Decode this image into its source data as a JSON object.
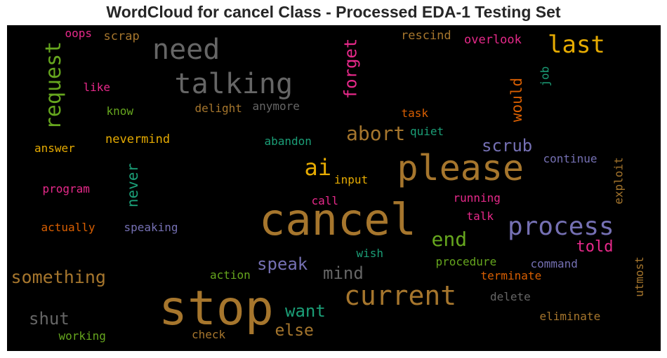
{
  "chart_data": {
    "type": "wordcloud",
    "title": "WordCloud for cancel Class - Processed EDA-1 Testing Set",
    "words": [
      {
        "text": "cancel",
        "color": "#a6762d",
        "vertical": false
      },
      {
        "text": "stop",
        "color": "#a6762d",
        "vertical": false
      },
      {
        "text": "please",
        "color": "#a6762d",
        "vertical": false
      },
      {
        "text": "need",
        "color": "#666666",
        "vertical": false
      },
      {
        "text": "talking",
        "color": "#666666",
        "vertical": false
      },
      {
        "text": "current",
        "color": "#a6762d",
        "vertical": false
      },
      {
        "text": "process",
        "color": "#7570b3",
        "vertical": false
      },
      {
        "text": "request",
        "color": "#66a61e",
        "vertical": true
      },
      {
        "text": "last",
        "color": "#e6ab02",
        "vertical": false
      },
      {
        "text": "abort",
        "color": "#a6762d",
        "vertical": false
      },
      {
        "text": "ai",
        "color": "#e6ab02",
        "vertical": false
      },
      {
        "text": "forget",
        "color": "#e7298a",
        "vertical": true
      },
      {
        "text": "end",
        "color": "#66a61e",
        "vertical": false
      },
      {
        "text": "something",
        "color": "#a6762d",
        "vertical": false
      },
      {
        "text": "speak",
        "color": "#7570b3",
        "vertical": false
      },
      {
        "text": "mind",
        "color": "#666666",
        "vertical": false
      },
      {
        "text": "want",
        "color": "#1b9e77",
        "vertical": false
      },
      {
        "text": "shut",
        "color": "#666666",
        "vertical": false
      },
      {
        "text": "else",
        "color": "#a6762d",
        "vertical": false
      },
      {
        "text": "scrub",
        "color": "#7570b3",
        "vertical": false
      },
      {
        "text": "told",
        "color": "#e7298a",
        "vertical": false
      },
      {
        "text": "would",
        "color": "#d95f02",
        "vertical": true
      },
      {
        "text": "never",
        "color": "#1b9e77",
        "vertical": true
      },
      {
        "text": "oops",
        "color": "#e7298a",
        "vertical": false
      },
      {
        "text": "scrap",
        "color": "#a6762d",
        "vertical": false
      },
      {
        "text": "rescind",
        "color": "#a6762d",
        "vertical": false
      },
      {
        "text": "overlook",
        "color": "#e7298a",
        "vertical": false
      },
      {
        "text": "job",
        "color": "#1b9e77",
        "vertical": true
      },
      {
        "text": "like",
        "color": "#e7298a",
        "vertical": false
      },
      {
        "text": "know",
        "color": "#66a61e",
        "vertical": false
      },
      {
        "text": "delight",
        "color": "#a6762d",
        "vertical": false
      },
      {
        "text": "anymore",
        "color": "#666666",
        "vertical": false
      },
      {
        "text": "task",
        "color": "#d95f02",
        "vertical": false
      },
      {
        "text": "quiet",
        "color": "#1b9e77",
        "vertical": false
      },
      {
        "text": "nevermind",
        "color": "#e6ab02",
        "vertical": false
      },
      {
        "text": "answer",
        "color": "#e6ab02",
        "vertical": false
      },
      {
        "text": "abandon",
        "color": "#1b9e77",
        "vertical": false
      },
      {
        "text": "continue",
        "color": "#7570b3",
        "vertical": false
      },
      {
        "text": "exploit",
        "color": "#a6762d",
        "vertical": true
      },
      {
        "text": "program",
        "color": "#e7298a",
        "vertical": false
      },
      {
        "text": "input",
        "color": "#e6ab02",
        "vertical": false
      },
      {
        "text": "running",
        "color": "#e7298a",
        "vertical": false
      },
      {
        "text": "call",
        "color": "#e7298a",
        "vertical": false
      },
      {
        "text": "actually",
        "color": "#d95f02",
        "vertical": false
      },
      {
        "text": "speaking",
        "color": "#7570b3",
        "vertical": false
      },
      {
        "text": "talk",
        "color": "#e7298a",
        "vertical": false
      },
      {
        "text": "wish",
        "color": "#1b9e77",
        "vertical": false
      },
      {
        "text": "procedure",
        "color": "#66a61e",
        "vertical": false
      },
      {
        "text": "command",
        "color": "#7570b3",
        "vertical": false
      },
      {
        "text": "action",
        "color": "#66a61e",
        "vertical": false
      },
      {
        "text": "terminate",
        "color": "#d95f02",
        "vertical": false
      },
      {
        "text": "utmost",
        "color": "#a6762d",
        "vertical": true
      },
      {
        "text": "delete",
        "color": "#666666",
        "vertical": false
      },
      {
        "text": "eliminate",
        "color": "#a6762d",
        "vertical": false
      },
      {
        "text": "working",
        "color": "#66a61e",
        "vertical": false
      },
      {
        "text": "check",
        "color": "#a6762d",
        "vertical": false
      }
    ]
  }
}
